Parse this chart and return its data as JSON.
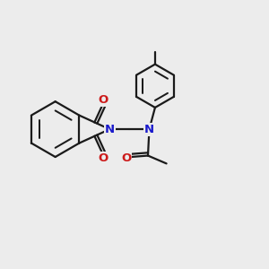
{
  "bg_color": "#ececec",
  "bond_color": "#1a1a1a",
  "n_color": "#1a1acc",
  "o_color": "#cc1a1a",
  "lw": 1.6,
  "figsize": [
    3.0,
    3.0
  ],
  "dpi": 100,
  "xlim": [
    0,
    10
  ],
  "ylim": [
    0,
    10
  ],
  "fontsize": 9.5
}
